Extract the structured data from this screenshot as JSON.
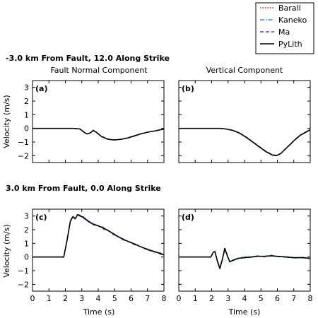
{
  "figure": {
    "row_titles": [
      "-3.0 km From Fault, 12.0 Along Strike",
      "3.0 km From Fault, 0.0 Along Strike"
    ],
    "column_titles": [
      "Fault Normal Component",
      "Vertical Component"
    ],
    "ylabel": "Velocity (m/s)",
    "xlabel": "Time (s)"
  },
  "legend": {
    "placement": "top-right",
    "items": [
      {
        "name": "Barall",
        "color": "#d62728",
        "style": "dotted"
      },
      {
        "name": "Kaneko",
        "color": "#1f9fc8",
        "style": "dashdot"
      },
      {
        "name": "Ma",
        "color": "#7b2fbf",
        "style": "dashed"
      },
      {
        "name": "PyLith",
        "color": "#000000",
        "style": "solid"
      }
    ]
  },
  "chart_data": [
    {
      "type": "line",
      "panel_label": "(a)",
      "xlim": [
        0,
        8
      ],
      "ylim": [
        -2.5,
        3.5
      ],
      "xticks": [
        0,
        1,
        2,
        3,
        4,
        5,
        6,
        7,
        8
      ],
      "yticks": [
        -2,
        -1,
        0,
        1,
        2,
        3
      ],
      "x": [
        0,
        2.5,
        2.9,
        3.1,
        3.3,
        3.5,
        3.7,
        3.9,
        4.2,
        4.6,
        5.0,
        5.4,
        5.8,
        6.2,
        6.6,
        7.0,
        7.4,
        7.8,
        8.0
      ],
      "series": [
        {
          "name": "Barall",
          "values": [
            0,
            0,
            -0.05,
            -0.25,
            -0.4,
            -0.35,
            -0.15,
            -0.3,
            -0.6,
            -0.8,
            -0.85,
            -0.8,
            -0.7,
            -0.55,
            -0.4,
            -0.28,
            -0.2,
            -0.1,
            -0.05
          ]
        },
        {
          "name": "Kaneko",
          "values": [
            0,
            0,
            -0.05,
            -0.25,
            -0.4,
            -0.35,
            -0.17,
            -0.3,
            -0.6,
            -0.8,
            -0.86,
            -0.8,
            -0.7,
            -0.55,
            -0.4,
            -0.28,
            -0.2,
            -0.1,
            -0.05
          ]
        },
        {
          "name": "Ma",
          "values": [
            0,
            0,
            -0.05,
            -0.25,
            -0.4,
            -0.33,
            -0.12,
            -0.28,
            -0.58,
            -0.78,
            -0.84,
            -0.79,
            -0.69,
            -0.54,
            -0.39,
            -0.27,
            -0.19,
            -0.09,
            -0.04
          ]
        },
        {
          "name": "PyLith",
          "values": [
            0,
            0,
            -0.05,
            -0.25,
            -0.4,
            -0.35,
            -0.15,
            -0.3,
            -0.6,
            -0.8,
            -0.85,
            -0.8,
            -0.7,
            -0.55,
            -0.4,
            -0.28,
            -0.2,
            -0.1,
            -0.05
          ]
        }
      ]
    },
    {
      "type": "line",
      "panel_label": "(b)",
      "xlim": [
        0,
        8
      ],
      "ylim": [
        -2.5,
        3.5
      ],
      "xticks": [
        0,
        1,
        2,
        3,
        4,
        5,
        6,
        7,
        8
      ],
      "yticks": [
        -2,
        -1,
        0,
        1,
        2,
        3
      ],
      "x": [
        0,
        2.5,
        2.9,
        3.3,
        3.7,
        4.1,
        4.5,
        4.9,
        5.3,
        5.7,
        5.95,
        6.2,
        6.5,
        6.8,
        7.1,
        7.4,
        7.7,
        8.0
      ],
      "series": [
        {
          "name": "Barall",
          "values": [
            0,
            0,
            -0.05,
            -0.15,
            -0.35,
            -0.65,
            -1.0,
            -1.35,
            -1.7,
            -1.95,
            -2.0,
            -1.85,
            -1.5,
            -1.15,
            -0.8,
            -0.5,
            -0.3,
            -0.1
          ]
        },
        {
          "name": "Kaneko",
          "values": [
            0,
            0,
            -0.05,
            -0.15,
            -0.35,
            -0.66,
            -1.0,
            -1.36,
            -1.7,
            -1.96,
            -2.0,
            -1.86,
            -1.5,
            -1.15,
            -0.8,
            -0.5,
            -0.3,
            -0.1
          ]
        },
        {
          "name": "Ma",
          "values": [
            0,
            0,
            -0.05,
            -0.14,
            -0.33,
            -0.62,
            -0.97,
            -1.32,
            -1.67,
            -1.92,
            -1.98,
            -1.84,
            -1.48,
            -1.13,
            -0.78,
            -0.48,
            -0.28,
            -0.08
          ]
        },
        {
          "name": "PyLith",
          "values": [
            0,
            0,
            -0.05,
            -0.15,
            -0.35,
            -0.65,
            -1.0,
            -1.35,
            -1.7,
            -1.95,
            -2.0,
            -1.85,
            -1.5,
            -1.15,
            -0.8,
            -0.5,
            -0.3,
            -0.1
          ]
        }
      ]
    },
    {
      "type": "line",
      "panel_label": "(c)",
      "xlim": [
        0,
        8
      ],
      "ylim": [
        -2.5,
        3.5
      ],
      "xticks": [
        0,
        1,
        2,
        3,
        4,
        5,
        6,
        7,
        8
      ],
      "yticks": [
        -2,
        -1,
        0,
        1,
        2,
        3
      ],
      "x": [
        0,
        1.9,
        2.1,
        2.3,
        2.45,
        2.6,
        2.75,
        2.9,
        3.1,
        3.4,
        3.7,
        4.0,
        4.3,
        4.6,
        4.9,
        5.2,
        5.5,
        5.8,
        6.2,
        6.6,
        7.0,
        7.4,
        7.8,
        8.0
      ],
      "series": [
        {
          "name": "Barall",
          "values": [
            0,
            0,
            1.2,
            2.6,
            3.0,
            2.8,
            3.1,
            3.05,
            2.9,
            2.6,
            2.4,
            2.3,
            2.1,
            1.95,
            1.7,
            1.5,
            1.3,
            1.15,
            0.95,
            0.75,
            0.55,
            0.4,
            0.25,
            0.15
          ]
        },
        {
          "name": "Kaneko",
          "values": [
            0,
            0,
            1.2,
            2.55,
            2.95,
            2.85,
            3.05,
            3.0,
            2.95,
            2.65,
            2.45,
            2.25,
            2.2,
            1.9,
            1.75,
            1.45,
            1.35,
            1.1,
            1.0,
            0.7,
            0.6,
            0.35,
            0.3,
            0.12
          ]
        },
        {
          "name": "Ma",
          "values": [
            0,
            0,
            1.25,
            2.65,
            3.0,
            2.75,
            3.15,
            3.05,
            2.85,
            2.6,
            2.35,
            2.3,
            2.05,
            1.95,
            1.65,
            1.5,
            1.25,
            1.15,
            0.9,
            0.75,
            0.5,
            0.4,
            0.2,
            0.15
          ]
        },
        {
          "name": "PyLith",
          "values": [
            0,
            0,
            1.2,
            2.6,
            2.95,
            2.8,
            3.1,
            3.0,
            2.9,
            2.6,
            2.4,
            2.28,
            2.12,
            1.95,
            1.72,
            1.5,
            1.3,
            1.15,
            0.95,
            0.75,
            0.55,
            0.4,
            0.25,
            0.15
          ]
        }
      ]
    },
    {
      "type": "line",
      "panel_label": "(d)",
      "xlim": [
        0,
        8
      ],
      "ylim": [
        -2.5,
        3.5
      ],
      "xticks": [
        0,
        1,
        2,
        3,
        4,
        5,
        6,
        7,
        8
      ],
      "yticks": [
        -2,
        -1,
        0,
        1,
        2,
        3
      ],
      "x": [
        0,
        1.95,
        2.1,
        2.2,
        2.35,
        2.5,
        2.65,
        2.8,
        2.95,
        3.1,
        3.3,
        3.6,
        4.0,
        4.4,
        4.8,
        5.2,
        5.6,
        6.0,
        6.5,
        7.0,
        7.5,
        8.0
      ],
      "series": [
        {
          "name": "Barall",
          "values": [
            0,
            0,
            0.35,
            0.4,
            -0.3,
            -0.85,
            -0.2,
            0.65,
            0.1,
            -0.35,
            -0.25,
            -0.1,
            -0.05,
            0.0,
            0.05,
            0.05,
            0.1,
            0.05,
            0.0,
            -0.05,
            -0.05,
            -0.1
          ]
        },
        {
          "name": "Kaneko",
          "values": [
            0,
            0,
            0.3,
            0.38,
            -0.25,
            -0.75,
            -0.15,
            0.6,
            0.05,
            -0.3,
            -0.2,
            -0.15,
            0.05,
            -0.05,
            0.1,
            0.0,
            0.15,
            0.0,
            0.05,
            -0.1,
            0.0,
            -0.15
          ]
        },
        {
          "name": "Ma",
          "values": [
            0,
            0,
            0.35,
            0.45,
            -0.3,
            -0.8,
            -0.2,
            0.7,
            0.1,
            -0.35,
            -0.25,
            -0.1,
            -0.05,
            0.0,
            0.05,
            0.05,
            0.1,
            0.05,
            0.0,
            -0.05,
            -0.05,
            -0.1
          ]
        },
        {
          "name": "PyLith",
          "values": [
            0,
            0,
            0.35,
            0.4,
            -0.3,
            -0.85,
            -0.2,
            0.62,
            0.1,
            -0.35,
            -0.25,
            -0.1,
            -0.05,
            0.0,
            0.05,
            0.05,
            0.08,
            0.05,
            0.0,
            -0.05,
            -0.05,
            -0.1
          ]
        }
      ]
    }
  ]
}
